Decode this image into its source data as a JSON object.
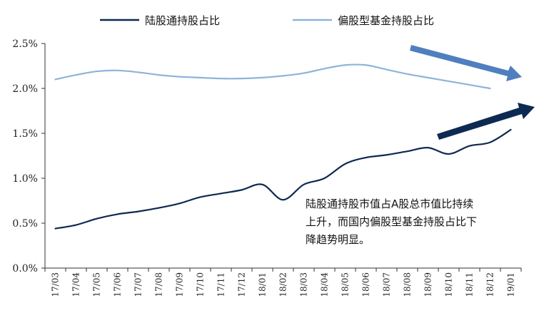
{
  "chart_data": {
    "type": "line",
    "title": "",
    "xlabel": "",
    "ylabel": "",
    "x": [
      "17/03",
      "17/04",
      "17/05",
      "17/06",
      "17/07",
      "17/08",
      "17/09",
      "17/10",
      "17/11",
      "17/12",
      "18/01",
      "18/02",
      "18/03",
      "18/04",
      "18/05",
      "18/06",
      "18/07",
      "18/08",
      "18/09",
      "18/10",
      "18/11",
      "18/12",
      "19/01"
    ],
    "y_ticks": [
      "0.0%",
      "0.5%",
      "1.0%",
      "1.5%",
      "2.0%",
      "2.5%"
    ],
    "ylim": [
      0,
      2.5
    ],
    "grid": false,
    "legend_position": "top",
    "series": [
      {
        "name": "陆股通持股占比",
        "color": "#0d2a52",
        "values": [
          0.44,
          0.48,
          0.55,
          0.6,
          0.63,
          0.67,
          0.72,
          0.79,
          0.83,
          0.87,
          0.93,
          0.76,
          0.93,
          1.0,
          1.16,
          1.23,
          1.26,
          1.3,
          1.34,
          1.27,
          1.36,
          1.4,
          1.54
        ]
      },
      {
        "name": "偏股型基金持股占比",
        "color": "#8fb3da",
        "values": [
          2.1,
          2.15,
          2.19,
          2.2,
          2.18,
          2.15,
          2.13,
          2.12,
          2.11,
          2.11,
          2.12,
          2.14,
          2.17,
          2.22,
          2.26,
          2.26,
          2.21,
          2.16,
          2.12,
          2.08,
          2.04,
          2.0,
          null
        ]
      }
    ],
    "annotation": {
      "lines": [
        "陆股通持股市值占A股总市值比持续",
        "上升，而国内偏股型基金持股占比下",
        "降趋势明显。"
      ]
    },
    "arrows": [
      {
        "series": "偏股型基金持股占比",
        "direction": "down",
        "color": "#4f7fbf"
      },
      {
        "series": "陆股通持股占比",
        "direction": "up",
        "color": "#0d2a52"
      }
    ]
  }
}
